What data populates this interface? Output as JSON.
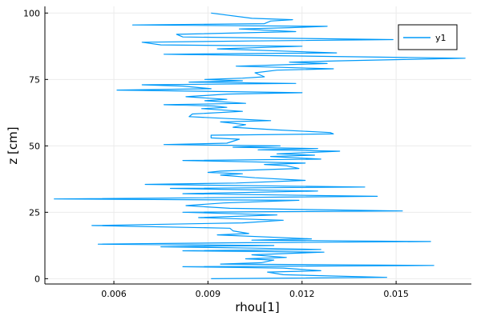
{
  "chart_data": {
    "type": "line",
    "title": "",
    "xlabel": "rhou[1]",
    "ylabel": "z [cm]",
    "xlim": [
      0.0038,
      0.0174
    ],
    "ylim": [
      -2,
      102.5
    ],
    "x_ticks": [
      0.006,
      0.009,
      0.012,
      0.015
    ],
    "x_tick_labels": [
      "0.006",
      "0.009",
      "0.012",
      "0.015"
    ],
    "y_ticks": [
      0,
      25,
      50,
      75,
      100
    ],
    "y_tick_labels": [
      "0",
      "25",
      "50",
      "75",
      "100"
    ],
    "grid": true,
    "legend_position": "top-right",
    "series": [
      {
        "name": "y1",
        "color": "#009af9",
        "points": [
          [
            0.0091,
            0
          ],
          [
            0.0147,
            0.5
          ],
          [
            0.0114,
            1.5
          ],
          [
            0.0109,
            2.5
          ],
          [
            0.0126,
            3
          ],
          [
            0.0114,
            4
          ],
          [
            0.0082,
            4.5
          ],
          [
            0.0162,
            5
          ],
          [
            0.0094,
            5.5
          ],
          [
            0.0107,
            6
          ],
          [
            0.0111,
            7
          ],
          [
            0.0102,
            7.5
          ],
          [
            0.0115,
            8
          ],
          [
            0.0104,
            9
          ],
          [
            0.0127,
            10
          ],
          [
            0.0082,
            10.5
          ],
          [
            0.0126,
            11
          ],
          [
            0.0105,
            11.5
          ],
          [
            0.0075,
            12
          ],
          [
            0.0111,
            12.5
          ],
          [
            0.0055,
            13
          ],
          [
            0.0098,
            13.5
          ],
          [
            0.0161,
            14
          ],
          [
            0.0104,
            14.5
          ],
          [
            0.0123,
            15
          ],
          [
            0.0093,
            16.5
          ],
          [
            0.0103,
            17
          ],
          [
            0.0098,
            18
          ],
          [
            0.0097,
            19
          ],
          [
            0.0053,
            20
          ],
          [
            0.0101,
            21
          ],
          [
            0.0114,
            22
          ],
          [
            0.0087,
            23
          ],
          [
            0.0112,
            24
          ],
          [
            0.0082,
            25
          ],
          [
            0.0152,
            25.5
          ],
          [
            0.0097,
            26.5
          ],
          [
            0.0083,
            27.5
          ],
          [
            0.0095,
            28.5
          ],
          [
            0.0119,
            29.5
          ],
          [
            0.0041,
            30
          ],
          [
            0.0144,
            31
          ],
          [
            0.0082,
            32
          ],
          [
            0.0125,
            33
          ],
          [
            0.0078,
            34
          ],
          [
            0.014,
            34.5
          ],
          [
            0.007,
            35.5
          ],
          [
            0.0099,
            36
          ],
          [
            0.0121,
            37
          ],
          [
            0.0105,
            38
          ],
          [
            0.0094,
            39
          ],
          [
            0.0101,
            39.5
          ],
          [
            0.009,
            40
          ],
          [
            0.0094,
            40.5
          ],
          [
            0.0119,
            41.5
          ],
          [
            0.0115,
            42.5
          ],
          [
            0.0108,
            43
          ],
          [
            0.0121,
            43.5
          ],
          [
            0.0104,
            44
          ],
          [
            0.0082,
            44.5
          ],
          [
            0.0126,
            45
          ],
          [
            0.011,
            46
          ],
          [
            0.0124,
            46.5
          ],
          [
            0.0112,
            47
          ],
          [
            0.0132,
            48
          ],
          [
            0.0106,
            48.5
          ],
          [
            0.0125,
            49
          ],
          [
            0.0098,
            49.5
          ],
          [
            0.0113,
            50
          ],
          [
            0.0076,
            50.5
          ],
          [
            0.0096,
            51
          ],
          [
            0.01,
            52.5
          ],
          [
            0.0091,
            53
          ],
          [
            0.0091,
            54
          ],
          [
            0.013,
            54.5
          ],
          [
            0.0129,
            55
          ],
          [
            0.0112,
            56
          ],
          [
            0.0098,
            57
          ],
          [
            0.0102,
            58
          ],
          [
            0.0094,
            59
          ],
          [
            0.011,
            59.5
          ],
          [
            0.0084,
            61
          ],
          [
            0.0085,
            62
          ],
          [
            0.0101,
            63
          ],
          [
            0.0088,
            64
          ],
          [
            0.0096,
            64.5
          ],
          [
            0.0092,
            65
          ],
          [
            0.0076,
            65.5
          ],
          [
            0.0102,
            66
          ],
          [
            0.0089,
            67
          ],
          [
            0.0096,
            67.5
          ],
          [
            0.0083,
            68.5
          ],
          [
            0.0096,
            69.5
          ],
          [
            0.012,
            70
          ],
          [
            0.0061,
            71
          ],
          [
            0.0091,
            71.5
          ],
          [
            0.0082,
            72.5
          ],
          [
            0.0069,
            73
          ],
          [
            0.0118,
            73.5
          ],
          [
            0.0084,
            74
          ],
          [
            0.0101,
            74.5
          ],
          [
            0.0089,
            75
          ],
          [
            0.0101,
            75.5
          ],
          [
            0.0108,
            76
          ],
          [
            0.0105,
            77.5
          ],
          [
            0.0112,
            78.5
          ],
          [
            0.013,
            79
          ],
          [
            0.0099,
            80
          ],
          [
            0.0128,
            81
          ],
          [
            0.0116,
            81.5
          ],
          [
            0.0131,
            82
          ],
          [
            0.0172,
            83
          ],
          [
            0.0107,
            84
          ],
          [
            0.0076,
            84.5
          ],
          [
            0.0131,
            85
          ],
          [
            0.0093,
            86.5
          ],
          [
            0.012,
            87.5
          ],
          [
            0.0075,
            88
          ],
          [
            0.0069,
            89
          ],
          [
            0.0104,
            89.5
          ],
          [
            0.0149,
            90
          ],
          [
            0.0082,
            91
          ],
          [
            0.008,
            92
          ],
          [
            0.0118,
            93
          ],
          [
            0.01,
            94
          ],
          [
            0.0116,
            94.5
          ],
          [
            0.0128,
            95
          ],
          [
            0.0066,
            95.5
          ],
          [
            0.0108,
            96
          ],
          [
            0.011,
            97
          ],
          [
            0.0117,
            97.5
          ],
          [
            0.0104,
            98
          ],
          [
            0.0091,
            100
          ]
        ]
      }
    ]
  }
}
